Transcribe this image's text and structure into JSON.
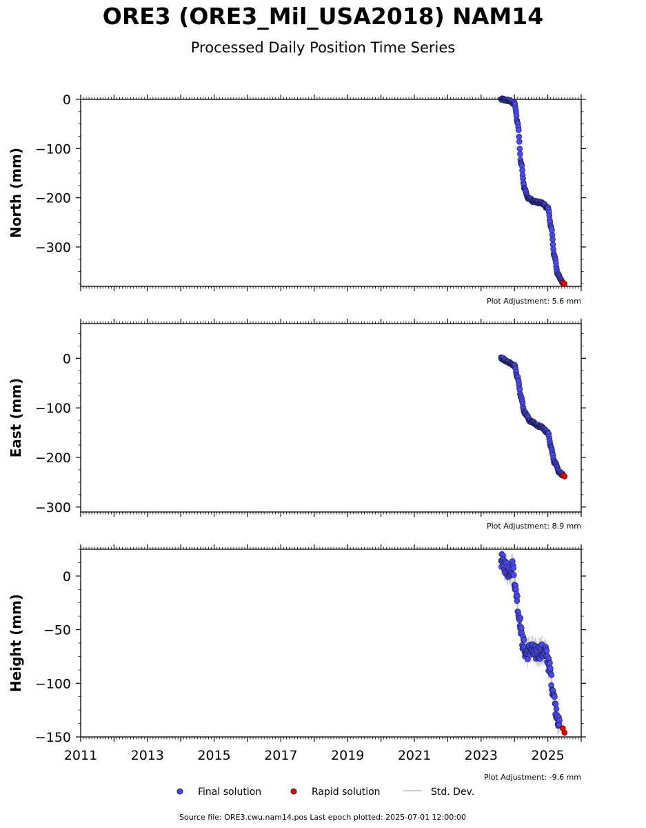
{
  "title": "ORE3 (ORE3_Mil_USA2018) NAM14",
  "subtitle": "Processed Daily Position Time Series",
  "legend": {
    "final": "Final solution",
    "rapid": "Rapid solution",
    "stddev": "Std. Dev."
  },
  "footer": "Source file: ORE3.cwu.nam14.pos  Last epoch plotted: 2025-07-01 12:00:00",
  "colors": {
    "final": "#4a4aee",
    "rapid": "#e00000",
    "stddev": "#c0c0c0"
  },
  "chart_data": [
    {
      "type": "scatter",
      "ylabel": "North (mm)",
      "xlim": [
        2011,
        2026
      ],
      "ylim": [
        -380,
        0
      ],
      "yticks": [
        0,
        -100,
        -200,
        -300
      ],
      "adjustment": "Plot Adjustment: 5.6 mm",
      "series": [
        {
          "name": "Final solution",
          "points": [
            [
              2023.6,
              0
            ],
            [
              2023.8,
              -2
            ],
            [
              2024.0,
              -8
            ],
            [
              2024.1,
              -50
            ],
            [
              2024.2,
              -130
            ],
            [
              2024.3,
              -180
            ],
            [
              2024.4,
              -200
            ],
            [
              2024.6,
              -208
            ],
            [
              2024.8,
              -210
            ],
            [
              2025.0,
              -220
            ],
            [
              2025.1,
              -260
            ],
            [
              2025.2,
              -320
            ],
            [
              2025.3,
              -355
            ],
            [
              2025.45,
              -372
            ]
          ]
        },
        {
          "name": "Rapid solution",
          "points": [
            [
              2025.46,
              -373
            ],
            [
              2025.5,
              -375
            ]
          ]
        }
      ]
    },
    {
      "type": "scatter",
      "ylabel": "East (mm)",
      "xlim": [
        2011,
        2026
      ],
      "ylim": [
        -310,
        70
      ],
      "yticks": [
        0,
        -100,
        -200,
        -300
      ],
      "adjustment": "Plot Adjustment: 8.9 mm",
      "series": [
        {
          "name": "Final solution",
          "points": [
            [
              2023.6,
              0
            ],
            [
              2023.8,
              -7
            ],
            [
              2024.0,
              -15
            ],
            [
              2024.1,
              -40
            ],
            [
              2024.2,
              -80
            ],
            [
              2024.3,
              -110
            ],
            [
              2024.5,
              -128
            ],
            [
              2024.8,
              -138
            ],
            [
              2025.0,
              -150
            ],
            [
              2025.1,
              -180
            ],
            [
              2025.2,
              -210
            ],
            [
              2025.35,
              -230
            ],
            [
              2025.45,
              -235
            ]
          ]
        },
        {
          "name": "Rapid solution",
          "points": [
            [
              2025.46,
              -236
            ],
            [
              2025.5,
              -238
            ]
          ]
        }
      ]
    },
    {
      "type": "scatter",
      "ylabel": "Height (mm)",
      "xlabel_ticks": [
        "2011",
        "2013",
        "2015",
        "2017",
        "2019",
        "2021",
        "2023",
        "2025"
      ],
      "xlim": [
        2011,
        2026
      ],
      "ylim": [
        -150,
        25
      ],
      "yticks": [
        0,
        -50,
        -100,
        -150
      ],
      "adjustment": "Plot Adjustment: -9.6 mm",
      "series": [
        {
          "name": "Final solution",
          "points": [
            [
              2023.6,
              15
            ],
            [
              2023.7,
              10
            ],
            [
              2023.8,
              5
            ],
            [
              2023.95,
              8
            ],
            [
              2024.05,
              -15
            ],
            [
              2024.15,
              -40
            ],
            [
              2024.25,
              -62
            ],
            [
              2024.35,
              -72
            ],
            [
              2024.5,
              -68
            ],
            [
              2024.6,
              -72
            ],
            [
              2024.8,
              -70
            ],
            [
              2024.95,
              -72
            ],
            [
              2025.05,
              -85
            ],
            [
              2025.15,
              -105
            ],
            [
              2025.25,
              -125
            ],
            [
              2025.35,
              -140
            ]
          ]
        },
        {
          "name": "Rapid solution",
          "points": [
            [
              2025.45,
              -142
            ],
            [
              2025.5,
              -146
            ]
          ]
        }
      ]
    }
  ]
}
